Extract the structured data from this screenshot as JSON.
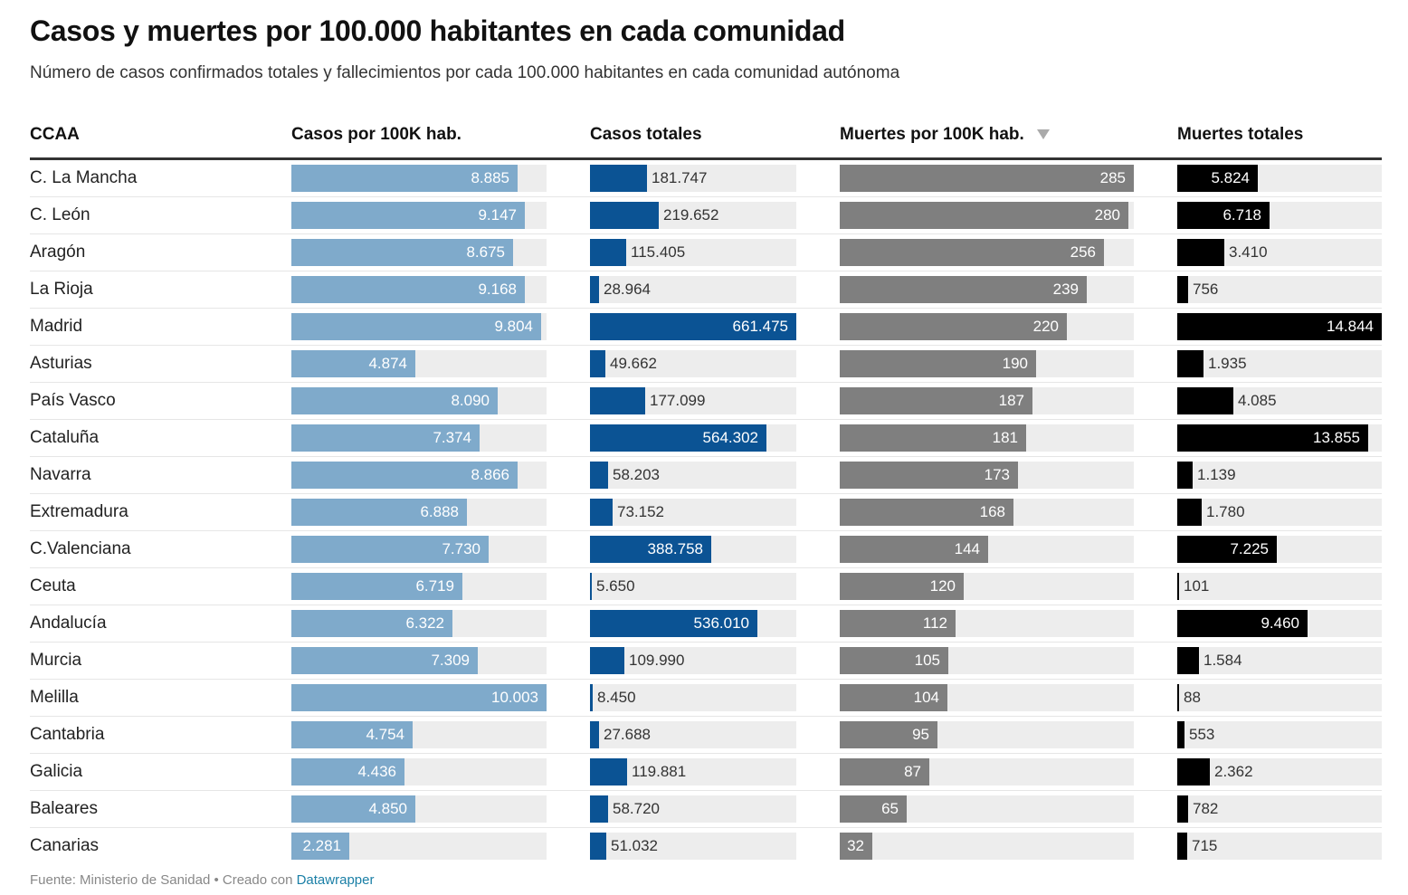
{
  "title": "Casos y muertes por 100.000 habitantes en cada comunidad",
  "subtitle": "Número de casos confirmados totales y fallecimientos por cada 100.000 habitantes en cada comunidad autónoma",
  "footer": {
    "source": "Fuente: Ministerio de Sanidad • Creado con ",
    "link": "Datawrapper"
  },
  "sort_icon": "triangle-down-icon",
  "columns": [
    {
      "key": "name",
      "label": "CCAA"
    },
    {
      "key": "casos100k",
      "label": "Casos por 100K hab.",
      "color": "#7faacb",
      "max": 10003
    },
    {
      "key": "casos",
      "label": "Casos totales",
      "color": "#0b5394",
      "max": 661475
    },
    {
      "key": "muertes100k",
      "label": "Muertes por 100K hab.",
      "color": "#7f7f7f",
      "max": 285,
      "sorted": "desc"
    },
    {
      "key": "muertes",
      "label": "Muertes totales",
      "color": "#000000",
      "max": 14844
    }
  ],
  "track_color": "#ededed",
  "chart_data": {
    "type": "table",
    "columns": [
      "CCAA",
      "Casos por 100K hab.",
      "Casos totales",
      "Muertes por 100K hab.",
      "Muertes totales"
    ],
    "sort": {
      "column": "Muertes por 100K hab.",
      "order": "desc"
    },
    "rows": [
      {
        "name": "C. La Mancha",
        "casos100k": 8885,
        "casos100k_label": "8.885",
        "casos": 181747,
        "casos_label": "181.747",
        "muertes100k": 285,
        "muertes100k_label": "285",
        "muertes": 5824,
        "muertes_label": "5.824"
      },
      {
        "name": "C. León",
        "casos100k": 9147,
        "casos100k_label": "9.147",
        "casos": 219652,
        "casos_label": "219.652",
        "muertes100k": 280,
        "muertes100k_label": "280",
        "muertes": 6718,
        "muertes_label": "6.718"
      },
      {
        "name": "Aragón",
        "casos100k": 8675,
        "casos100k_label": "8.675",
        "casos": 115405,
        "casos_label": "115.405",
        "muertes100k": 256,
        "muertes100k_label": "256",
        "muertes": 3410,
        "muertes_label": "3.410"
      },
      {
        "name": "La Rioja",
        "casos100k": 9168,
        "casos100k_label": "9.168",
        "casos": 28964,
        "casos_label": "28.964",
        "muertes100k": 239,
        "muertes100k_label": "239",
        "muertes": 756,
        "muertes_label": "756"
      },
      {
        "name": "Madrid",
        "casos100k": 9804,
        "casos100k_label": "9.804",
        "casos": 661475,
        "casos_label": "661.475",
        "muertes100k": 220,
        "muertes100k_label": "220",
        "muertes": 14844,
        "muertes_label": "14.844"
      },
      {
        "name": "Asturias",
        "casos100k": 4874,
        "casos100k_label": "4.874",
        "casos": 49662,
        "casos_label": "49.662",
        "muertes100k": 190,
        "muertes100k_label": "190",
        "muertes": 1935,
        "muertes_label": "1.935"
      },
      {
        "name": "País Vasco",
        "casos100k": 8090,
        "casos100k_label": "8.090",
        "casos": 177099,
        "casos_label": "177.099",
        "muertes100k": 187,
        "muertes100k_label": "187",
        "muertes": 4085,
        "muertes_label": "4.085"
      },
      {
        "name": "Cataluña",
        "casos100k": 7374,
        "casos100k_label": "7.374",
        "casos": 564302,
        "casos_label": "564.302",
        "muertes100k": 181,
        "muertes100k_label": "181",
        "muertes": 13855,
        "muertes_label": "13.855"
      },
      {
        "name": "Navarra",
        "casos100k": 8866,
        "casos100k_label": "8.866",
        "casos": 58203,
        "casos_label": "58.203",
        "muertes100k": 173,
        "muertes100k_label": "173",
        "muertes": 1139,
        "muertes_label": "1.139"
      },
      {
        "name": "Extremadura",
        "casos100k": 6888,
        "casos100k_label": "6.888",
        "casos": 73152,
        "casos_label": "73.152",
        "muertes100k": 168,
        "muertes100k_label": "168",
        "muertes": 1780,
        "muertes_label": "1.780"
      },
      {
        "name": "C.Valenciana",
        "casos100k": 7730,
        "casos100k_label": "7.730",
        "casos": 388758,
        "casos_label": "388.758",
        "muertes100k": 144,
        "muertes100k_label": "144",
        "muertes": 7225,
        "muertes_label": "7.225"
      },
      {
        "name": "Ceuta",
        "casos100k": 6719,
        "casos100k_label": "6.719",
        "casos": 5650,
        "casos_label": "5.650",
        "muertes100k": 120,
        "muertes100k_label": "120",
        "muertes": 101,
        "muertes_label": "101"
      },
      {
        "name": "Andalucía",
        "casos100k": 6322,
        "casos100k_label": "6.322",
        "casos": 536010,
        "casos_label": "536.010",
        "muertes100k": 112,
        "muertes100k_label": "112",
        "muertes": 9460,
        "muertes_label": "9.460"
      },
      {
        "name": "Murcia",
        "casos100k": 7309,
        "casos100k_label": "7.309",
        "casos": 109990,
        "casos_label": "109.990",
        "muertes100k": 105,
        "muertes100k_label": "105",
        "muertes": 1584,
        "muertes_label": "1.584"
      },
      {
        "name": "Melilla",
        "casos100k": 10003,
        "casos100k_label": "10.003",
        "casos": 8450,
        "casos_label": "8.450",
        "muertes100k": 104,
        "muertes100k_label": "104",
        "muertes": 88,
        "muertes_label": "88"
      },
      {
        "name": "Cantabria",
        "casos100k": 4754,
        "casos100k_label": "4.754",
        "casos": 27688,
        "casos_label": "27.688",
        "muertes100k": 95,
        "muertes100k_label": "95",
        "muertes": 553,
        "muertes_label": "553"
      },
      {
        "name": "Galicia",
        "casos100k": 4436,
        "casos100k_label": "4.436",
        "casos": 119881,
        "casos_label": "119.881",
        "muertes100k": 87,
        "muertes100k_label": "87",
        "muertes": 2362,
        "muertes_label": "2.362"
      },
      {
        "name": "Baleares",
        "casos100k": 4850,
        "casos100k_label": "4.850",
        "casos": 58720,
        "casos_label": "58.720",
        "muertes100k": 65,
        "muertes100k_label": "65",
        "muertes": 782,
        "muertes_label": "782"
      },
      {
        "name": "Canarias",
        "casos100k": 2281,
        "casos100k_label": "2.281",
        "casos": 51032,
        "casos_label": "51.032",
        "muertes100k": 32,
        "muertes100k_label": "32",
        "muertes": 715,
        "muertes_label": "715"
      }
    ]
  }
}
